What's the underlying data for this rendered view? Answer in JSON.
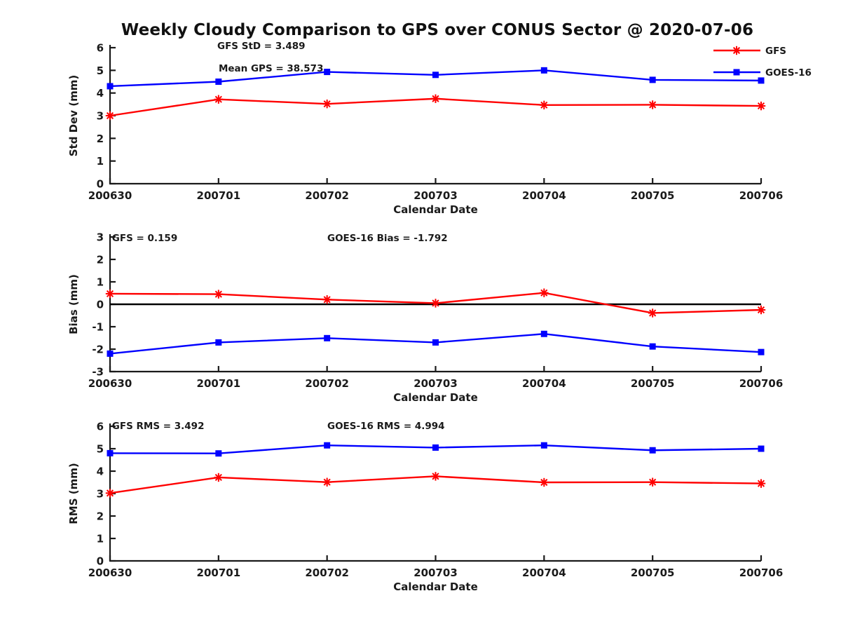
{
  "title": "Weekly Cloudy Comparison to GPS over CONUS Sector @ 2020-07-06",
  "colors": {
    "gfs": "#ff0000",
    "goes16": "#0000ff",
    "axis": "#1a1a1a",
    "text": "#1a1a1a",
    "zero_line": "#000000",
    "background": "#ffffff"
  },
  "legend": {
    "position": "top-right",
    "entries": [
      {
        "label": "GFS",
        "color": "#ff0000",
        "marker": "asterisk"
      },
      {
        "label": "GOES-16",
        "color": "#0000ff",
        "marker": "square"
      }
    ]
  },
  "chart_data": [
    {
      "id": "stddev",
      "type": "line",
      "ylabel": "Std Dev (mm)",
      "xlabel": "Calendar Date",
      "ylim": [
        0,
        6
      ],
      "ytick_labels": [
        "0",
        "1",
        "2",
        "3",
        "4",
        "5",
        "6"
      ],
      "categories": [
        "200630",
        "200701",
        "200702",
        "200703",
        "200704",
        "200705",
        "200706"
      ],
      "grid": false,
      "zero_line": false,
      "show_legend": true,
      "series": [
        {
          "name": "GFS",
          "color": "#ff0000",
          "marker": "asterisk",
          "values": [
            3.0,
            3.72,
            3.52,
            3.75,
            3.47,
            3.48,
            3.43
          ]
        },
        {
          "name": "GOES-16",
          "color": "#0000ff",
          "marker": "square",
          "values": [
            4.3,
            4.5,
            4.93,
            4.8,
            5.0,
            4.58,
            4.55
          ]
        }
      ],
      "annotations": [
        {
          "text": "GFS StD = 3.489",
          "fx": 0.1647,
          "py": 2
        },
        {
          "text": "Mean GPS = 38.573",
          "fx": 0.1668,
          "py": 34
        }
      ]
    },
    {
      "id": "bias",
      "type": "line",
      "ylabel": "Bias (mm)",
      "xlabel": "Calendar Date",
      "ylim": [
        -3,
        3
      ],
      "ytick_labels": [
        "-3",
        "-2",
        "-1",
        "0",
        "1",
        "2",
        "3"
      ],
      "categories": [
        "200630",
        "200701",
        "200702",
        "200703",
        "200704",
        "200705",
        "200706"
      ],
      "grid": false,
      "zero_line": true,
      "show_legend": false,
      "series": [
        {
          "name": "GFS",
          "color": "#ff0000",
          "marker": "asterisk",
          "values": [
            0.47,
            0.45,
            0.21,
            0.05,
            0.51,
            -0.39,
            -0.25
          ]
        },
        {
          "name": "GOES-16",
          "color": "#0000ff",
          "marker": "square",
          "values": [
            -2.2,
            -1.7,
            -1.51,
            -1.7,
            -1.32,
            -1.88,
            -2.13
          ]
        }
      ],
      "annotations": [
        {
          "text": "GFS = 0.159",
          "fx": 0.003,
          "py": 6
        },
        {
          "text": "GOES-16 Bias  = -1.792",
          "fx": 0.3337,
          "py": 6
        }
      ]
    },
    {
      "id": "rms",
      "type": "line",
      "ylabel": "RMS (mm)",
      "xlabel": "Calendar Date",
      "ylim": [
        0,
        6
      ],
      "ytick_labels": [
        "0",
        "1",
        "2",
        "3",
        "4",
        "5",
        "6"
      ],
      "categories": [
        "200630",
        "200701",
        "200702",
        "200703",
        "200704",
        "200705",
        "200706"
      ],
      "grid": false,
      "zero_line": false,
      "show_legend": false,
      "series": [
        {
          "name": "GFS",
          "color": "#ff0000",
          "marker": "asterisk",
          "values": [
            3.02,
            3.72,
            3.51,
            3.77,
            3.5,
            3.51,
            3.45
          ]
        },
        {
          "name": "GOES-16",
          "color": "#0000ff",
          "marker": "square",
          "values": [
            4.8,
            4.79,
            5.15,
            5.05,
            5.15,
            4.93,
            5.0
          ]
        }
      ],
      "annotations": [
        {
          "text": "GFS RMS = 3.492",
          "fx": 0.003,
          "py": 4
        },
        {
          "text": "GOES-16 RMS = 4.994",
          "fx": 0.3337,
          "py": 4
        }
      ]
    }
  ]
}
